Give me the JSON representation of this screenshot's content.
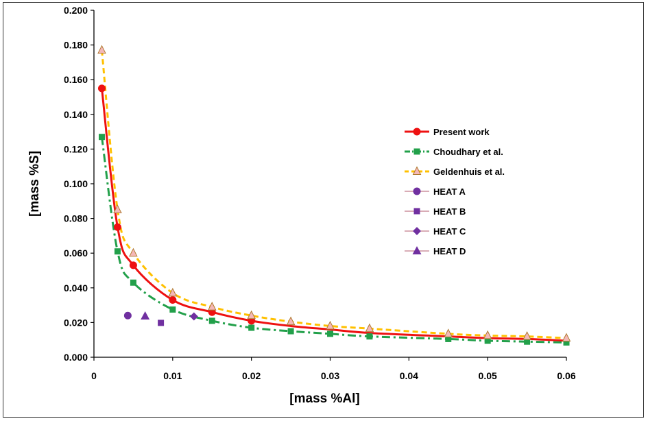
{
  "chart_data": {
    "type": "scatter",
    "xlabel": "[mass %Al]",
    "ylabel": "[mass %S]",
    "xlim": [
      0,
      0.06
    ],
    "ylim": [
      0,
      0.2
    ],
    "xticks": [
      0,
      0.01,
      0.02,
      0.03,
      0.04,
      0.05,
      0.06
    ],
    "xtick_labels": [
      "0",
      "0.01",
      "0.02",
      "0.03",
      "0.04",
      "0.05",
      "0.06"
    ],
    "yticks": [
      0,
      0.02,
      0.04,
      0.06,
      0.08,
      0.1,
      0.12,
      0.14,
      0.16,
      0.18,
      0.2
    ],
    "ytick_labels": [
      "0.000",
      "0.020",
      "0.040",
      "0.060",
      "0.080",
      "0.100",
      "0.120",
      "0.140",
      "0.160",
      "0.180",
      "0.200"
    ],
    "grid": false,
    "legend_position": "right",
    "series": [
      {
        "name": "Present work",
        "color": "#ee1111",
        "line": "solid",
        "marker": "circle",
        "x": [
          0.001,
          0.003,
          0.005,
          0.01,
          0.015,
          0.02,
          0.025,
          0.03,
          0.035,
          0.045,
          0.05,
          0.055,
          0.06
        ],
        "y": [
          0.155,
          0.075,
          0.053,
          0.033,
          0.026,
          0.021,
          0.018,
          0.016,
          0.014,
          0.012,
          0.011,
          0.0105,
          0.0095
        ],
        "marker_indices": [
          0,
          1,
          2,
          3,
          4,
          5
        ]
      },
      {
        "name": "Choudhary et al.",
        "color": "#22a04a",
        "line": "dashdot",
        "marker": "square",
        "x": [
          0.001,
          0.003,
          0.005,
          0.01,
          0.015,
          0.02,
          0.025,
          0.03,
          0.035,
          0.045,
          0.05,
          0.055,
          0.06
        ],
        "y": [
          0.127,
          0.061,
          0.043,
          0.0275,
          0.021,
          0.017,
          0.015,
          0.0135,
          0.012,
          0.0105,
          0.0095,
          0.009,
          0.0085
        ],
        "marker_indices": [
          0,
          1,
          2,
          3,
          4,
          5,
          6,
          7,
          8,
          9,
          10,
          11,
          12
        ]
      },
      {
        "name": "Geldenhuis  et al.",
        "color": "#ffc000",
        "line": "dashed",
        "marker": "triangle-open",
        "marker_fill": "#f4b8b8",
        "marker_stroke": "#b07a30",
        "x": [
          0.001,
          0.003,
          0.005,
          0.01,
          0.015,
          0.02,
          0.025,
          0.03,
          0.035,
          0.045,
          0.05,
          0.055,
          0.06
        ],
        "y": [
          0.177,
          0.085,
          0.06,
          0.037,
          0.029,
          0.024,
          0.0205,
          0.018,
          0.0165,
          0.0135,
          0.0125,
          0.012,
          0.011
        ],
        "marker_indices": [
          0,
          1,
          2,
          3,
          4,
          5,
          6,
          7,
          8,
          9,
          10,
          11,
          12
        ]
      },
      {
        "name": "HEAT A",
        "color": "#7030a0",
        "marker": "circle",
        "x": [
          0.0043
        ],
        "y": [
          0.024
        ]
      },
      {
        "name": "HEAT B",
        "color": "#7030a0",
        "marker": "square",
        "x": [
          0.0085
        ],
        "y": [
          0.0198
        ]
      },
      {
        "name": "HEAT C",
        "color": "#7030a0",
        "marker": "diamond",
        "x": [
          0.0127
        ],
        "y": [
          0.0235
        ]
      },
      {
        "name": "HEAT D",
        "color": "#7030a0",
        "marker": "triangle",
        "x": [
          0.0065
        ],
        "y": [
          0.0237
        ]
      }
    ]
  }
}
